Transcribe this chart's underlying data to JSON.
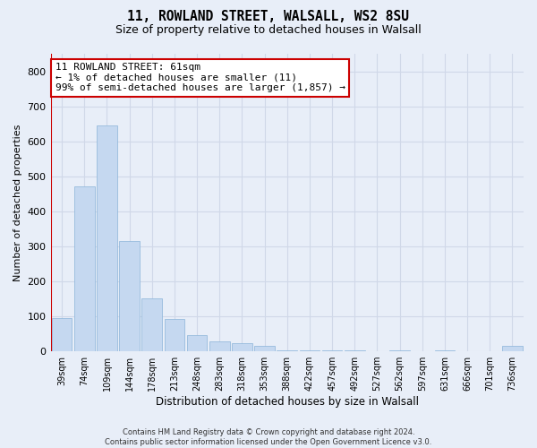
{
  "title1": "11, ROWLAND STREET, WALSALL, WS2 8SU",
  "title2": "Size of property relative to detached houses in Walsall",
  "xlabel": "Distribution of detached houses by size in Walsall",
  "ylabel": "Number of detached properties",
  "categories": [
    "39sqm",
    "74sqm",
    "109sqm",
    "144sqm",
    "178sqm",
    "213sqm",
    "248sqm",
    "283sqm",
    "318sqm",
    "353sqm",
    "388sqm",
    "422sqm",
    "457sqm",
    "492sqm",
    "527sqm",
    "562sqm",
    "597sqm",
    "631sqm",
    "666sqm",
    "701sqm",
    "736sqm"
  ],
  "values": [
    95,
    470,
    645,
    315,
    152,
    93,
    46,
    28,
    22,
    16,
    3,
    3,
    3,
    3,
    0,
    3,
    0,
    3,
    0,
    0,
    15
  ],
  "bar_color": "#c5d8f0",
  "bar_edge_color": "#8ab4d8",
  "highlight_color": "#cc0000",
  "annotation_line1": "11 ROWLAND STREET: 61sqm",
  "annotation_line2": "← 1% of detached houses are smaller (11)",
  "annotation_line3": "99% of semi-detached houses are larger (1,857) →",
  "annotation_box_facecolor": "#ffffff",
  "annotation_box_edgecolor": "#cc0000",
  "background_color": "#e8eef8",
  "grid_color": "#d0d8e8",
  "ylim": [
    0,
    850
  ],
  "yticks": [
    0,
    100,
    200,
    300,
    400,
    500,
    600,
    700,
    800
  ],
  "footer1": "Contains HM Land Registry data © Crown copyright and database right 2024.",
  "footer2": "Contains public sector information licensed under the Open Government Licence v3.0."
}
